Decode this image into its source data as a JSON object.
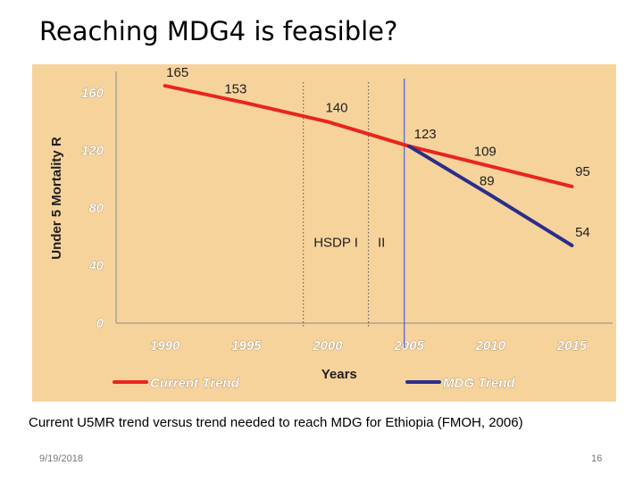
{
  "slide": {
    "title": "Reaching MDG4 is feasible?",
    "caption": "Current U5MR trend versus trend needed to reach MDG for Ethiopia (FMOH, 2006)",
    "date": "9/19/2018",
    "page_number": "16"
  },
  "chart_data": {
    "type": "line",
    "title": "",
    "xlabel": "Years",
    "ylabel": "Under 5 Mortality R",
    "xlim": [
      1987,
      2017.5
    ],
    "ylim": [
      0,
      170
    ],
    "x_ticks": [
      1990,
      1995,
      2000,
      2005,
      2010,
      2015
    ],
    "y_ticks": [
      0,
      40,
      80,
      120,
      160
    ],
    "background": "#f7d39c",
    "grid": false,
    "legend_position": "bottom",
    "series": [
      {
        "name": "Current Trend",
        "color": "#e8251c",
        "points": [
          [
            1990,
            165
          ],
          [
            1995,
            153
          ],
          [
            2000,
            140
          ],
          [
            2005,
            123
          ],
          [
            2010,
            109
          ],
          [
            2015,
            95
          ]
        ],
        "labels": [
          "165",
          "153",
          "140",
          "123",
          "109",
          "95"
        ]
      },
      {
        "name": "MDG Trend",
        "color": "#2a2e8a",
        "points": [
          [
            2005,
            123
          ],
          [
            2010,
            89
          ],
          [
            2015,
            54
          ]
        ],
        "labels": [
          "",
          "89",
          "54"
        ]
      }
    ],
    "annotations": [
      {
        "text": "HSDP I",
        "x": 2000.5,
        "y": 53
      },
      {
        "text": "II",
        "x": 2003.3,
        "y": 53
      }
    ],
    "reference_lines": [
      {
        "x": 1998.5,
        "style": "dotted",
        "color": "#666666"
      },
      {
        "x": 2002.5,
        "style": "dotted",
        "color": "#666666"
      },
      {
        "x": 2004.7,
        "style": "solid",
        "color": "#5a6fd6"
      }
    ]
  }
}
